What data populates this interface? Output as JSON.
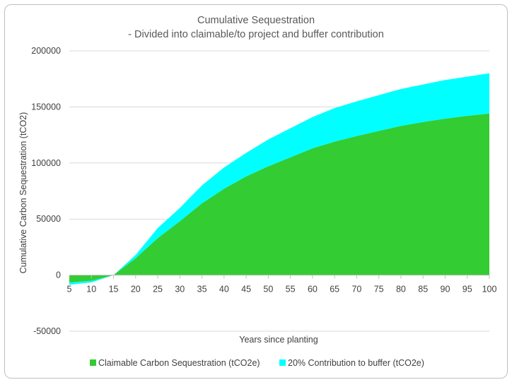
{
  "chart_data": {
    "type": "area",
    "stacked": true,
    "title": "Cumulative Sequestration",
    "subtitle": "- Divided into claimable/to project and buffer contribution",
    "xlabel": "Years since planting",
    "ylabel": "Cumulative Carbon Sequestration (tCO2)",
    "x": [
      5,
      10,
      15,
      20,
      25,
      30,
      35,
      40,
      45,
      50,
      55,
      60,
      65,
      70,
      75,
      80,
      85,
      90,
      95,
      100
    ],
    "ylim": [
      -50000,
      200000
    ],
    "yticks": [
      -50000,
      0,
      50000,
      100000,
      150000,
      200000
    ],
    "ytick_labels": [
      "-50000",
      "0",
      "50000",
      "100000",
      "150000",
      "200000"
    ],
    "grid": true,
    "legend_position": "bottom",
    "series": [
      {
        "name": "Claimable Carbon Sequestration (tCO2e)",
        "color": "#33cc33",
        "values": [
          -6500,
          -5000,
          0,
          15000,
          33000,
          48000,
          64000,
          77000,
          88000,
          97000,
          105000,
          113000,
          119000,
          124000,
          128500,
          133000,
          136500,
          139500,
          142000,
          144000
        ]
      },
      {
        "name": "20% Contribution to buffer (tCO2e)",
        "color": "#00ffff",
        "values": [
          -2000,
          -1500,
          0,
          3000,
          9000,
          12000,
          16000,
          19000,
          21000,
          24000,
          26000,
          28000,
          30000,
          31000,
          32000,
          33000,
          33500,
          34500,
          35000,
          36000
        ]
      }
    ]
  }
}
